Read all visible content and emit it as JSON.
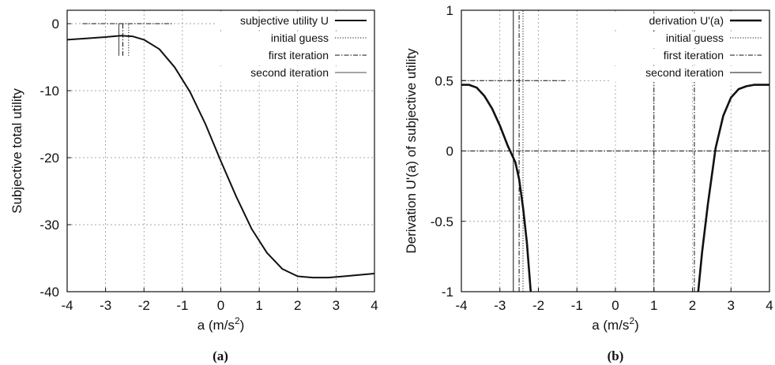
{
  "chart_data": [
    {
      "type": "line",
      "caption": "(a)",
      "xlabel": "a (m/s²)",
      "xlabel_base": "a (m/s",
      "xlabel_sup": "2",
      "xlabel_close": ")",
      "ylabel": "Subjective total utility",
      "xlim": [
        -4,
        4
      ],
      "ylim": [
        -40,
        2
      ],
      "xticks": [
        "-4",
        "-3",
        "-2",
        "-1",
        "0",
        "1",
        "2",
        "3",
        "4"
      ],
      "yticks": [
        "0",
        "-10",
        "-20",
        "-30",
        "-40"
      ],
      "ytick_values": [
        0,
        -10,
        -20,
        -30,
        -40
      ],
      "grid": true,
      "legend_position": "top-right",
      "series": [
        {
          "name": "subjective utility U",
          "style": "solid",
          "x": [
            -4.0,
            -3.5,
            -3.0,
            -2.6,
            -2.3,
            -2.0,
            -1.6,
            -1.2,
            -0.8,
            -0.4,
            0.0,
            0.4,
            0.8,
            1.2,
            1.6,
            2.0,
            2.4,
            2.8,
            3.2,
            3.6,
            4.0
          ],
          "y": [
            -2.4,
            -2.2,
            -2.0,
            -1.8,
            -1.9,
            -2.4,
            -3.8,
            -6.5,
            -10.2,
            -15.0,
            -20.5,
            -25.8,
            -30.6,
            -34.2,
            -36.6,
            -37.7,
            -37.9,
            -37.9,
            -37.7,
            -37.5,
            -37.3
          ]
        },
        {
          "name": "initial guess",
          "style": "dotted",
          "x": [
            -2.4,
            -2.4
          ],
          "y": [
            -4.8,
            0
          ]
        },
        {
          "name": "first iteration",
          "style": "dashdot",
          "x": [
            -2.55,
            -2.55
          ],
          "y": [
            -4.8,
            0
          ]
        },
        {
          "name": "second iteration",
          "style": "thin",
          "x": [
            -2.65,
            -2.65
          ],
          "y": [
            -4.8,
            0
          ]
        }
      ],
      "annotations": [
        {
          "style": "dashdot",
          "x": [
            -3.6,
            -1.25
          ],
          "y": [
            0,
            0
          ]
        }
      ]
    },
    {
      "type": "line",
      "caption": "(b)",
      "xlabel": "a (m/s²)",
      "xlabel_base": "a (m/s",
      "xlabel_sup": "2",
      "xlabel_close": ")",
      "ylabel": "Derivation U'(a) of subjective utility",
      "xlim": [
        -4,
        4
      ],
      "ylim": [
        -1,
        1
      ],
      "xticks": [
        "-4",
        "-3",
        "-2",
        "-1",
        "0",
        "1",
        "2",
        "3",
        "4"
      ],
      "yticks": [
        "1",
        "0.5",
        "0",
        "-0.5",
        "-1"
      ],
      "ytick_values": [
        1,
        0.5,
        0,
        -0.5,
        -1
      ],
      "grid": true,
      "legend_position": "top-right",
      "series": [
        {
          "name": "derivation U'(a)",
          "style": "bold",
          "segments": [
            {
              "x": [
                -4.0,
                -3.8,
                -3.6,
                -3.4,
                -3.2,
                -3.0,
                -2.8,
                -2.6,
                -2.5,
                -2.4,
                -2.3,
                -2.2
              ],
              "y": [
                0.47,
                0.47,
                0.45,
                0.39,
                0.3,
                0.18,
                0.04,
                -0.08,
                -0.2,
                -0.4,
                -0.65,
                -1.0
              ]
            },
            {
              "x": [
                2.15,
                2.25,
                2.4,
                2.6,
                2.8,
                3.0,
                3.2,
                3.4,
                3.6,
                3.8,
                4.0
              ],
              "y": [
                -1.0,
                -0.72,
                -0.38,
                0.02,
                0.25,
                0.38,
                0.44,
                0.46,
                0.47,
                0.47,
                0.47
              ]
            }
          ]
        },
        {
          "name": "initial guess",
          "style": "dotted",
          "x": [
            -2.4,
            -2.4
          ],
          "y": [
            -1,
            1
          ]
        },
        {
          "name": "first iteration",
          "style": "dashdot",
          "x": [
            -2.5,
            -2.5
          ],
          "y": [
            -1,
            1
          ]
        },
        {
          "name": "second iteration",
          "style": "solid",
          "x": [
            -2.65,
            -2.65
          ],
          "y": [
            -1,
            1
          ]
        }
      ],
      "annotations": [
        {
          "style": "dashdot",
          "x": [
            -4,
            -1.3
          ],
          "y": [
            0.5,
            0.5
          ]
        },
        {
          "style": "dashdot",
          "x": [
            -4,
            4
          ],
          "y": [
            0,
            0
          ]
        },
        {
          "style": "dashdot",
          "x": [
            1.0,
            1.0
          ],
          "y": [
            -1,
            1
          ]
        },
        {
          "style": "dashdot",
          "x": [
            2.05,
            2.05
          ],
          "y": [
            -1,
            1
          ]
        }
      ]
    }
  ]
}
